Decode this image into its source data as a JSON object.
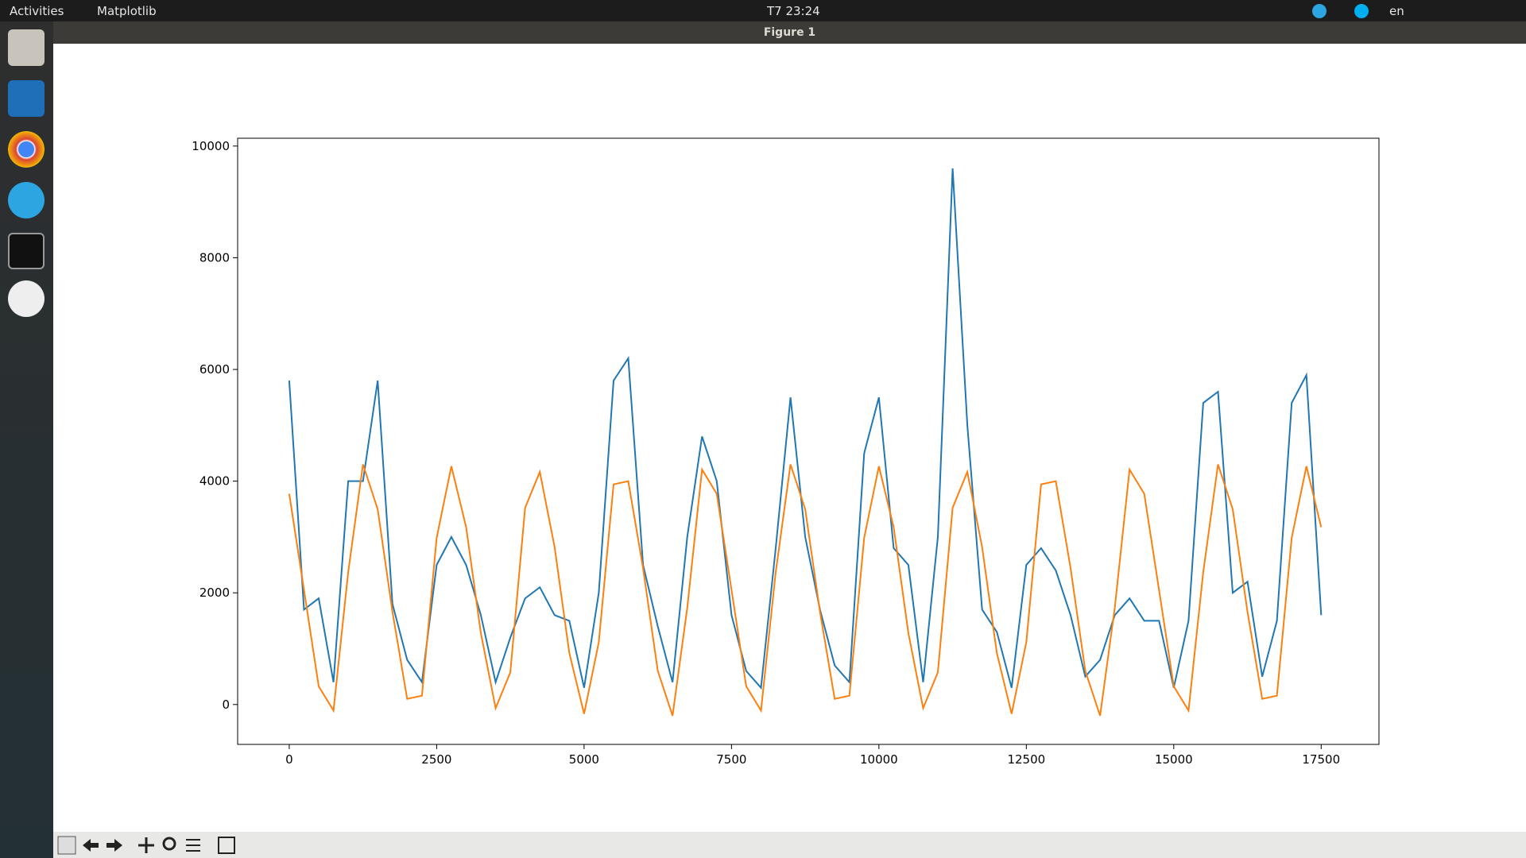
{
  "topbar": {
    "activities": "Activities",
    "app": "Matplotlib",
    "clock": "T7 23:24",
    "lang": "en"
  },
  "window": {
    "title": "Figure 1"
  },
  "chart_data": {
    "type": "line",
    "x": [
      0,
      250,
      500,
      750,
      1000,
      1250,
      1500,
      1750,
      2000,
      2250,
      2500,
      2750,
      3000,
      3250,
      3500,
      3750,
      4000,
      4250,
      4500,
      4750,
      5000,
      5250,
      5500,
      5750,
      6000,
      6250,
      6500,
      6750,
      7000,
      7250,
      7500,
      7750,
      8000,
      8250,
      8500,
      8750,
      9000,
      9250,
      9500,
      9750,
      10000,
      10250,
      10500,
      10750,
      11000,
      11250,
      11500,
      11750,
      12000,
      12250,
      12500,
      12750,
      13000,
      13250,
      13500,
      13750,
      14000,
      14250,
      14500,
      14750,
      15000,
      15250,
      15500,
      15750,
      16000,
      16250,
      16500,
      16750,
      17000,
      17250,
      17500
    ],
    "series": [
      {
        "color": "#1f77b4",
        "values": [
          5800,
          1700,
          1900,
          400,
          4000,
          4000,
          5800,
          1800,
          800,
          400,
          2500,
          3000,
          2500,
          1600,
          400,
          1200,
          1900,
          2100,
          1600,
          1500,
          300,
          2000,
          5800,
          6200,
          2500,
          1400,
          400,
          3000,
          4800,
          4000,
          1600,
          600,
          300,
          2800,
          5500,
          3000,
          1700,
          700,
          400,
          4500,
          5500,
          2800,
          2500,
          400,
          3000,
          9600,
          5000,
          1700,
          1300,
          300,
          2500,
          2800,
          2400,
          1600,
          500,
          800,
          1600,
          1900,
          1500,
          1500,
          300,
          1500,
          5400,
          5600,
          2000,
          2200,
          500,
          1500,
          5400,
          5900,
          1600
        ]
      },
      {
        "color": "#ff7f0e",
        "values": [
          3773,
          2050,
          326,
          -108,
          2370,
          4300,
          3497,
          1659,
          101,
          158,
          2984,
          4266,
          3175,
          1280,
          -65,
          576,
          3524,
          4165,
          2820,
          925,
          -166,
          1116,
          3942,
          3999,
          2441,
          603,
          -200,
          1730,
          4208,
          3773,
          2050,
          326,
          -108,
          2370,
          4300,
          3497,
          1659,
          101,
          158,
          2984,
          4266,
          3175,
          1280,
          -65,
          576,
          3524,
          4165,
          2820,
          925,
          -166,
          1116,
          3942,
          3999,
          2441,
          603,
          -200,
          1730,
          4208,
          3773,
          2050,
          326,
          -108,
          2370,
          4300,
          3497,
          1659,
          101,
          158,
          2984,
          4266,
          3175
        ]
      }
    ],
    "xlim": [
      -875,
      18480
    ],
    "ylim": [
      -714,
      10140
    ],
    "xticks": [
      0,
      2500,
      5000,
      7500,
      10000,
      12500,
      15000,
      17500
    ],
    "yticks": [
      0,
      2000,
      4000,
      6000,
      8000,
      10000
    ]
  }
}
